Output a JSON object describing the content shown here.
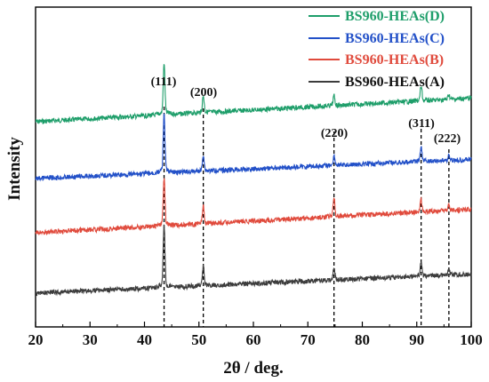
{
  "chart_data": {
    "type": "line",
    "xlabel": "2θ / deg.",
    "ylabel": "Intensity",
    "xlim": [
      20,
      100
    ],
    "x_ticks": [
      "20",
      "30",
      "40",
      "50",
      "60",
      "70",
      "80",
      "90",
      "100"
    ],
    "y_ticks_labeled": false,
    "legend_position": "top-right",
    "series": [
      {
        "name": "BS960-HEAs(D)",
        "color": "#1e9e6a",
        "offset": 3,
        "base_start": 0.0,
        "base_end": 0.55,
        "peaks": [
          {
            "x": 43.6,
            "h": 1.05
          },
          {
            "x": 50.8,
            "h": 0.35
          },
          {
            "x": 74.8,
            "h": 0.2
          },
          {
            "x": 90.8,
            "h": 0.3
          },
          {
            "x": 95.9,
            "h": 0.1
          }
        ]
      },
      {
        "name": "BS960-HEAs(C)",
        "color": "#2250c8",
        "offset": 2,
        "base_start": 0.0,
        "base_end": 0.45,
        "peaks": [
          {
            "x": 43.6,
            "h": 1.2
          },
          {
            "x": 50.8,
            "h": 0.35
          },
          {
            "x": 74.8,
            "h": 0.2
          },
          {
            "x": 90.8,
            "h": 0.3
          },
          {
            "x": 95.9,
            "h": 0.1
          }
        ]
      },
      {
        "name": "BS960-HEAs(B)",
        "color": "#e04a3c",
        "offset": 1,
        "base_start": 0.0,
        "base_end": 0.55,
        "peaks": [
          {
            "x": 43.6,
            "h": 1.0
          },
          {
            "x": 50.8,
            "h": 0.4
          },
          {
            "x": 74.8,
            "h": 0.4
          },
          {
            "x": 90.8,
            "h": 0.25
          },
          {
            "x": 95.9,
            "h": 0.1
          }
        ]
      },
      {
        "name": "BS960-HEAs(A)",
        "color": "#3c3c3c",
        "offset": 0,
        "base_start": 0.0,
        "base_end": 0.45,
        "peaks": [
          {
            "x": 43.6,
            "h": 1.3
          },
          {
            "x": 50.8,
            "h": 0.4
          },
          {
            "x": 74.8,
            "h": 0.25
          },
          {
            "x": 90.8,
            "h": 0.3
          },
          {
            "x": 95.9,
            "h": 0.1
          }
        ]
      }
    ],
    "reference_lines": [
      {
        "x": 43.6,
        "label": "(111)"
      },
      {
        "x": 50.8,
        "label": "(200)"
      },
      {
        "x": 74.8,
        "label": "(220)"
      },
      {
        "x": 90.8,
        "label": "(311)"
      },
      {
        "x": 95.9,
        "label": "(222)"
      }
    ]
  }
}
